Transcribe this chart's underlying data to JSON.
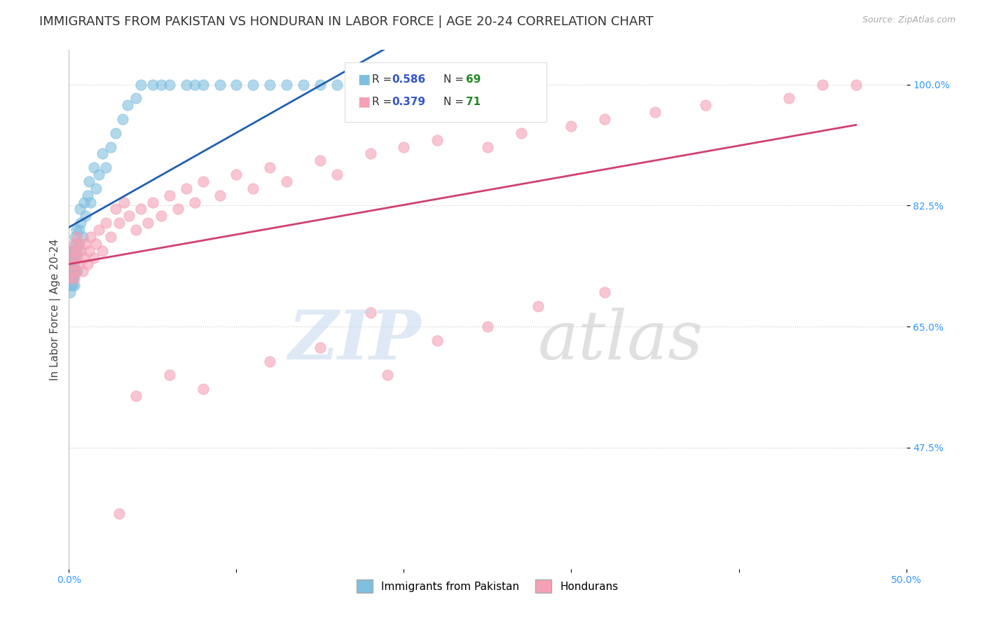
{
  "title": "IMMIGRANTS FROM PAKISTAN VS HONDURAN IN LABOR FORCE | AGE 20-24 CORRELATION CHART",
  "source": "Source: ZipAtlas.com",
  "ylabel": "In Labor Force | Age 20-24",
  "xlim": [
    0.0,
    0.5
  ],
  "ylim": [
    0.3,
    1.05
  ],
  "yticks": [
    0.475,
    0.65,
    0.825,
    1.0
  ],
  "yticklabels": [
    "47.5%",
    "65.0%",
    "82.5%",
    "100.0%"
  ],
  "pakistan_color": "#7fbfdf",
  "honduran_color": "#f4a0b5",
  "trendline_pakistan_color": "#2060b0",
  "trendline_honduran_color": "#d04070",
  "r_color": "#3355cc",
  "n_color": "#228822",
  "background_color": "#ffffff",
  "grid_color": "#cccccc",
  "pakistan_x": [
    0.0003,
    0.0005,
    0.0007,
    0.001,
    0.001,
    0.0012,
    0.0013,
    0.0015,
    0.0015,
    0.0017,
    0.0018,
    0.002,
    0.002,
    0.0022,
    0.0023,
    0.0025,
    0.0025,
    0.003,
    0.003,
    0.003,
    0.0032,
    0.0035,
    0.0037,
    0.004,
    0.0043,
    0.005,
    0.005,
    0.0055,
    0.006,
    0.0065,
    0.007,
    0.008,
    0.009,
    0.01,
    0.011,
    0.012,
    0.013,
    0.015,
    0.016,
    0.018,
    0.02,
    0.022,
    0.025,
    0.028,
    0.032,
    0.035,
    0.04,
    0.043,
    0.05,
    0.055,
    0.06,
    0.07,
    0.075,
    0.08,
    0.09,
    0.1,
    0.11,
    0.12,
    0.13,
    0.14,
    0.15,
    0.16,
    0.17,
    0.18,
    0.19,
    0.2,
    0.21,
    0.22,
    0.24
  ],
  "pakistan_y": [
    0.72,
    0.74,
    0.7,
    0.76,
    0.73,
    0.75,
    0.71,
    0.74,
    0.72,
    0.73,
    0.76,
    0.71,
    0.74,
    0.72,
    0.73,
    0.75,
    0.72,
    0.74,
    0.71,
    0.73,
    0.76,
    0.78,
    0.75,
    0.77,
    0.79,
    0.76,
    0.73,
    0.77,
    0.79,
    0.82,
    0.8,
    0.78,
    0.83,
    0.81,
    0.84,
    0.86,
    0.83,
    0.88,
    0.85,
    0.87,
    0.9,
    0.88,
    0.91,
    0.93,
    0.95,
    0.97,
    0.98,
    1.0,
    1.0,
    1.0,
    1.0,
    1.0,
    1.0,
    1.0,
    1.0,
    1.0,
    1.0,
    1.0,
    1.0,
    1.0,
    1.0,
    1.0,
    1.0,
    1.0,
    1.0,
    1.0,
    1.0,
    1.0,
    1.0
  ],
  "honduras_x": [
    0.0005,
    0.001,
    0.0015,
    0.002,
    0.0025,
    0.003,
    0.003,
    0.004,
    0.004,
    0.005,
    0.005,
    0.006,
    0.006,
    0.007,
    0.008,
    0.009,
    0.01,
    0.011,
    0.012,
    0.013,
    0.015,
    0.016,
    0.018,
    0.02,
    0.022,
    0.025,
    0.028,
    0.03,
    0.033,
    0.036,
    0.04,
    0.043,
    0.047,
    0.05,
    0.055,
    0.06,
    0.065,
    0.07,
    0.075,
    0.08,
    0.09,
    0.1,
    0.11,
    0.12,
    0.13,
    0.15,
    0.16,
    0.18,
    0.2,
    0.22,
    0.25,
    0.27,
    0.3,
    0.32,
    0.35,
    0.38,
    0.43,
    0.45,
    0.47,
    0.25,
    0.15,
    0.18,
    0.22,
    0.28,
    0.32,
    0.19,
    0.12,
    0.08,
    0.06,
    0.04,
    0.03
  ],
  "honduras_y": [
    0.72,
    0.75,
    0.73,
    0.76,
    0.74,
    0.77,
    0.72,
    0.76,
    0.73,
    0.75,
    0.78,
    0.74,
    0.77,
    0.76,
    0.73,
    0.75,
    0.77,
    0.74,
    0.76,
    0.78,
    0.75,
    0.77,
    0.79,
    0.76,
    0.8,
    0.78,
    0.82,
    0.8,
    0.83,
    0.81,
    0.79,
    0.82,
    0.8,
    0.83,
    0.81,
    0.84,
    0.82,
    0.85,
    0.83,
    0.86,
    0.84,
    0.87,
    0.85,
    0.88,
    0.86,
    0.89,
    0.87,
    0.9,
    0.91,
    0.92,
    0.91,
    0.93,
    0.94,
    0.95,
    0.96,
    0.97,
    0.98,
    1.0,
    1.0,
    0.65,
    0.62,
    0.67,
    0.63,
    0.68,
    0.7,
    0.58,
    0.6,
    0.56,
    0.58,
    0.55,
    0.38
  ]
}
